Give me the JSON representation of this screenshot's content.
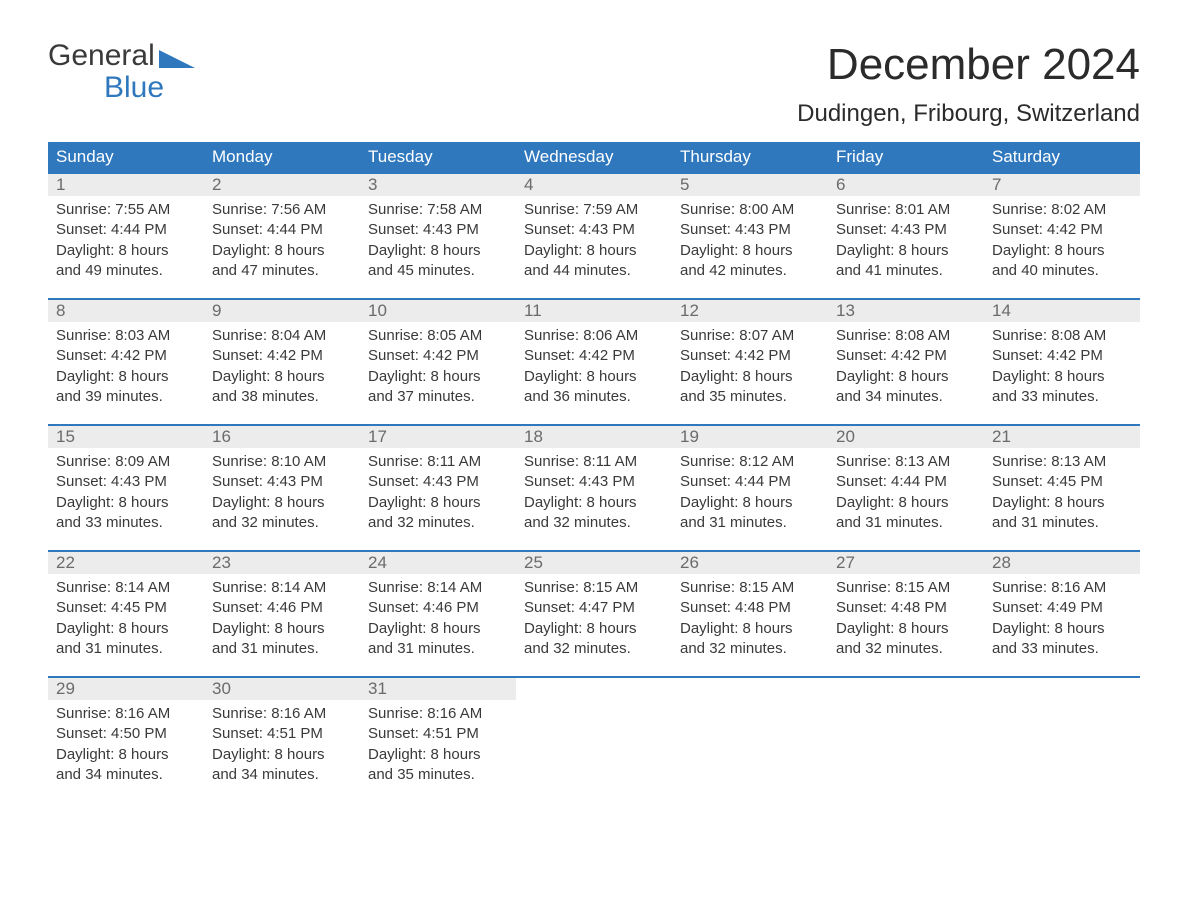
{
  "logo": {
    "line1": "General",
    "line2": "Blue"
  },
  "title": "December 2024",
  "location": "Dudingen, Fribourg, Switzerland",
  "colors": {
    "header_bg": "#2f78be",
    "header_text": "#ffffff",
    "week_border": "#2f78be",
    "daynum_bg": "#ececec",
    "daynum_text": "#6b6b6b",
    "body_text": "#3a3a3a",
    "logo_blue": "#2f78be",
    "background": "#ffffff"
  },
  "typography": {
    "title_fontsize": 44,
    "location_fontsize": 24,
    "dayname_fontsize": 17,
    "detail_fontsize": 15
  },
  "day_names": [
    "Sunday",
    "Monday",
    "Tuesday",
    "Wednesday",
    "Thursday",
    "Friday",
    "Saturday"
  ],
  "labels": {
    "sunrise": "Sunrise:",
    "sunset": "Sunset:",
    "daylight": "Daylight:"
  },
  "weeks": [
    [
      {
        "n": "1",
        "sunrise": "7:55 AM",
        "sunset": "4:44 PM",
        "daylight": "8 hours and 49 minutes."
      },
      {
        "n": "2",
        "sunrise": "7:56 AM",
        "sunset": "4:44 PM",
        "daylight": "8 hours and 47 minutes."
      },
      {
        "n": "3",
        "sunrise": "7:58 AM",
        "sunset": "4:43 PM",
        "daylight": "8 hours and 45 minutes."
      },
      {
        "n": "4",
        "sunrise": "7:59 AM",
        "sunset": "4:43 PM",
        "daylight": "8 hours and 44 minutes."
      },
      {
        "n": "5",
        "sunrise": "8:00 AM",
        "sunset": "4:43 PM",
        "daylight": "8 hours and 42 minutes."
      },
      {
        "n": "6",
        "sunrise": "8:01 AM",
        "sunset": "4:43 PM",
        "daylight": "8 hours and 41 minutes."
      },
      {
        "n": "7",
        "sunrise": "8:02 AM",
        "sunset": "4:42 PM",
        "daylight": "8 hours and 40 minutes."
      }
    ],
    [
      {
        "n": "8",
        "sunrise": "8:03 AM",
        "sunset": "4:42 PM",
        "daylight": "8 hours and 39 minutes."
      },
      {
        "n": "9",
        "sunrise": "8:04 AM",
        "sunset": "4:42 PM",
        "daylight": "8 hours and 38 minutes."
      },
      {
        "n": "10",
        "sunrise": "8:05 AM",
        "sunset": "4:42 PM",
        "daylight": "8 hours and 37 minutes."
      },
      {
        "n": "11",
        "sunrise": "8:06 AM",
        "sunset": "4:42 PM",
        "daylight": "8 hours and 36 minutes."
      },
      {
        "n": "12",
        "sunrise": "8:07 AM",
        "sunset": "4:42 PM",
        "daylight": "8 hours and 35 minutes."
      },
      {
        "n": "13",
        "sunrise": "8:08 AM",
        "sunset": "4:42 PM",
        "daylight": "8 hours and 34 minutes."
      },
      {
        "n": "14",
        "sunrise": "8:08 AM",
        "sunset": "4:42 PM",
        "daylight": "8 hours and 33 minutes."
      }
    ],
    [
      {
        "n": "15",
        "sunrise": "8:09 AM",
        "sunset": "4:43 PM",
        "daylight": "8 hours and 33 minutes."
      },
      {
        "n": "16",
        "sunrise": "8:10 AM",
        "sunset": "4:43 PM",
        "daylight": "8 hours and 32 minutes."
      },
      {
        "n": "17",
        "sunrise": "8:11 AM",
        "sunset": "4:43 PM",
        "daylight": "8 hours and 32 minutes."
      },
      {
        "n": "18",
        "sunrise": "8:11 AM",
        "sunset": "4:43 PM",
        "daylight": "8 hours and 32 minutes."
      },
      {
        "n": "19",
        "sunrise": "8:12 AM",
        "sunset": "4:44 PM",
        "daylight": "8 hours and 31 minutes."
      },
      {
        "n": "20",
        "sunrise": "8:13 AM",
        "sunset": "4:44 PM",
        "daylight": "8 hours and 31 minutes."
      },
      {
        "n": "21",
        "sunrise": "8:13 AM",
        "sunset": "4:45 PM",
        "daylight": "8 hours and 31 minutes."
      }
    ],
    [
      {
        "n": "22",
        "sunrise": "8:14 AM",
        "sunset": "4:45 PM",
        "daylight": "8 hours and 31 minutes."
      },
      {
        "n": "23",
        "sunrise": "8:14 AM",
        "sunset": "4:46 PM",
        "daylight": "8 hours and 31 minutes."
      },
      {
        "n": "24",
        "sunrise": "8:14 AM",
        "sunset": "4:46 PM",
        "daylight": "8 hours and 31 minutes."
      },
      {
        "n": "25",
        "sunrise": "8:15 AM",
        "sunset": "4:47 PM",
        "daylight": "8 hours and 32 minutes."
      },
      {
        "n": "26",
        "sunrise": "8:15 AM",
        "sunset": "4:48 PM",
        "daylight": "8 hours and 32 minutes."
      },
      {
        "n": "27",
        "sunrise": "8:15 AM",
        "sunset": "4:48 PM",
        "daylight": "8 hours and 32 minutes."
      },
      {
        "n": "28",
        "sunrise": "8:16 AM",
        "sunset": "4:49 PM",
        "daylight": "8 hours and 33 minutes."
      }
    ],
    [
      {
        "n": "29",
        "sunrise": "8:16 AM",
        "sunset": "4:50 PM",
        "daylight": "8 hours and 34 minutes."
      },
      {
        "n": "30",
        "sunrise": "8:16 AM",
        "sunset": "4:51 PM",
        "daylight": "8 hours and 34 minutes."
      },
      {
        "n": "31",
        "sunrise": "8:16 AM",
        "sunset": "4:51 PM",
        "daylight": "8 hours and 35 minutes."
      },
      null,
      null,
      null,
      null
    ]
  ]
}
